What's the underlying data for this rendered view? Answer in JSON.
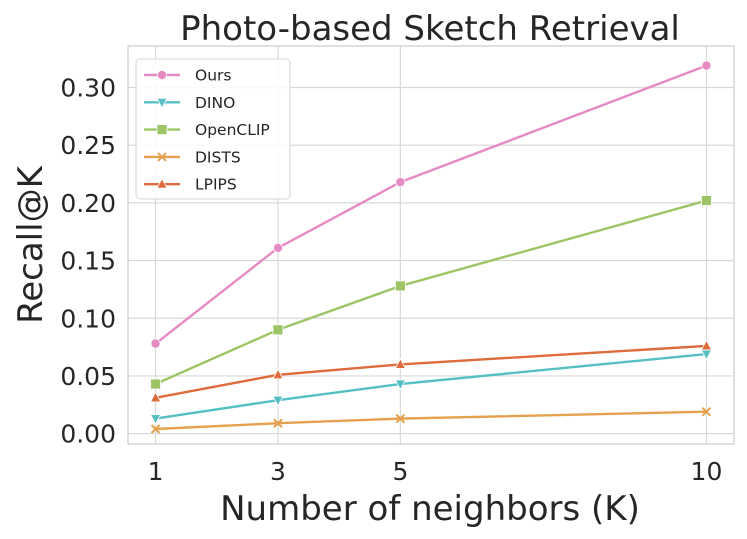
{
  "chart_data": {
    "type": "line",
    "title": "Photo-based Sketch Retrieval",
    "xlabel": "Number of neighbors (K)",
    "ylabel": "Recall@K",
    "x": [
      1,
      3,
      5,
      10
    ],
    "xticks": [
      "1",
      "3",
      "5",
      "10"
    ],
    "yticks": [
      "0.00",
      "0.05",
      "0.10",
      "0.15",
      "0.20",
      "0.25",
      "0.30"
    ],
    "xlim": [
      0.55,
      10.45
    ],
    "ylim": [
      -0.009,
      0.336
    ],
    "grid": true,
    "legend_position": "top-left",
    "series": [
      {
        "name": "Ours",
        "color": "#E68AC3",
        "marker": "circle",
        "values": [
          0.078,
          0.161,
          0.218,
          0.319
        ]
      },
      {
        "name": "DINO",
        "color": "#56BFC4",
        "marker": "triangle-down",
        "values": [
          0.013,
          0.029,
          0.043,
          0.069
        ]
      },
      {
        "name": "OpenCLIP",
        "color": "#9DC565",
        "marker": "square",
        "values": [
          0.043,
          0.09,
          0.128,
          0.202
        ]
      },
      {
        "name": "DISTS",
        "color": "#E5A24E",
        "marker": "x",
        "values": [
          0.004,
          0.009,
          0.013,
          0.019
        ]
      },
      {
        "name": "LPIPS",
        "color": "#DD6B3B",
        "marker": "triangle-up",
        "values": [
          0.031,
          0.051,
          0.06,
          0.076
        ]
      }
    ]
  }
}
